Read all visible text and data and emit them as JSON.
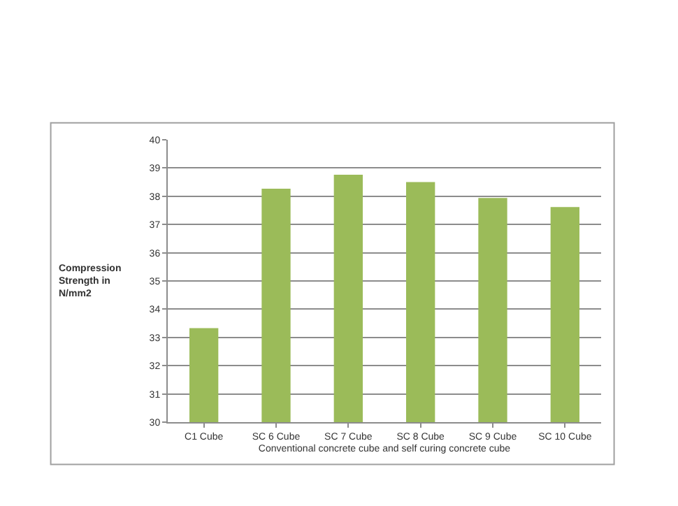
{
  "chart_data": {
    "type": "bar",
    "xlabel": "Conventional concrete cube and self curing concrete cube",
    "ylabel": "Compression\nStrength in\nN/mm2",
    "categories": [
      "C1 Cube",
      "SC 6 Cube",
      "SC 7 Cube",
      "SC 8 Cube",
      "SC 9 Cube",
      "SC 10 Cube"
    ],
    "values": [
      33.33,
      38.27,
      38.76,
      38.5,
      37.94,
      37.62
    ],
    "color": "#9bbb59",
    "ylim": [
      30,
      40
    ],
    "yticks": [
      30,
      31,
      32,
      33,
      34,
      35,
      36,
      37,
      38,
      39,
      40
    ],
    "grid": "y"
  }
}
